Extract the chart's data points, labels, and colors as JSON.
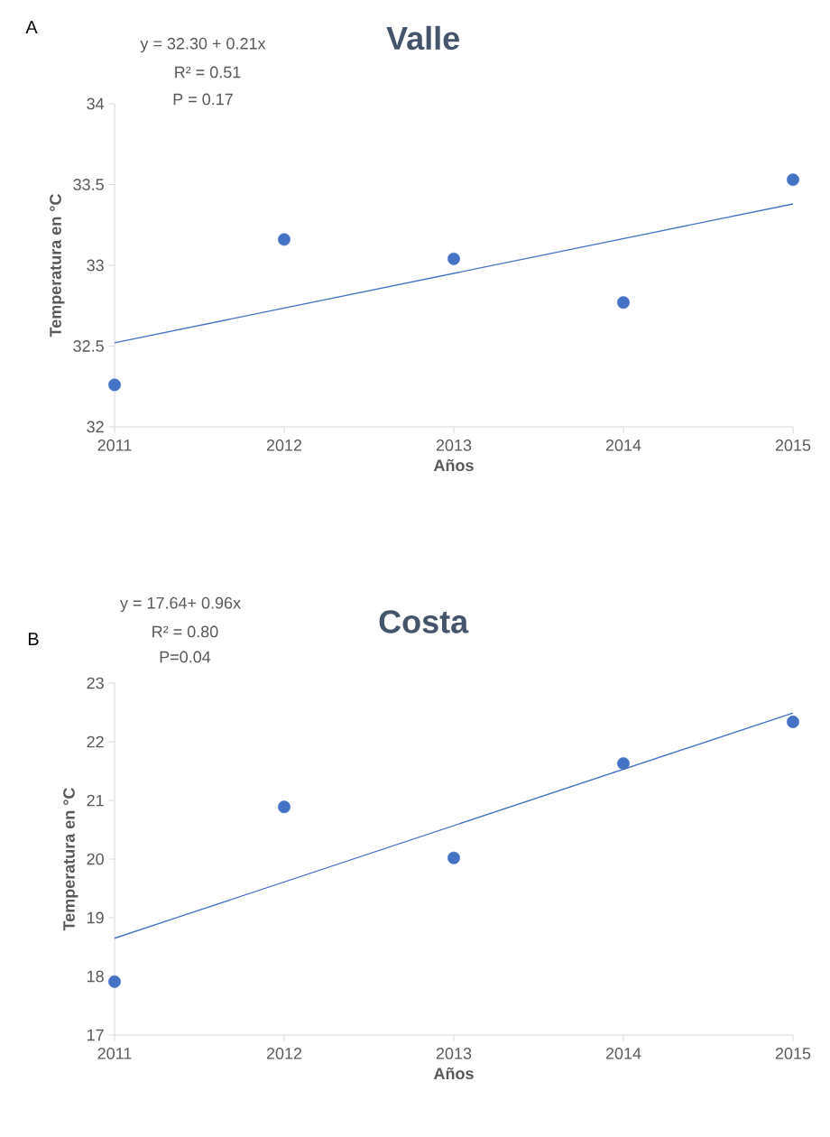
{
  "chart_data": [
    {
      "type": "scatter",
      "title": "Valle",
      "xlabel": "Años",
      "ylabel": "Temperatura en °C",
      "xlim": [
        2011,
        2015
      ],
      "xticks": [
        2011,
        2012,
        2013,
        2014,
        2015
      ],
      "ylim": [
        32,
        34
      ],
      "yticks": [
        32,
        32.5,
        33,
        33.5,
        34
      ],
      "annotations": [
        "A",
        "y =  32.30 + 0.21x",
        "R² = 0.51",
        "P = 0.17"
      ],
      "series": [
        {
          "color": "#4472c4",
          "x": [
            2011,
            2012,
            2013,
            2014,
            2015
          ],
          "values": [
            32.26,
            33.16,
            33.04,
            32.77,
            33.53
          ]
        },
        {
          "type": "line",
          "color": "#4472c4",
          "marker": "none",
          "x": [
            2011,
            2015
          ],
          "values": [
            32.52,
            33.38
          ]
        }
      ]
    },
    {
      "type": "scatter",
      "title": "Costa",
      "xlabel": "Años",
      "ylabel": "Temperatura en °C",
      "xlim": [
        2011,
        2015
      ],
      "xticks": [
        2011,
        2012,
        2013,
        2014,
        2015
      ],
      "ylim": [
        17,
        23
      ],
      "yticks": [
        17,
        18,
        19,
        20,
        21,
        22,
        23
      ],
      "annotations": [
        "B",
        "y =   17.64+ 0.96x",
        "R² = 0.80",
        "P=0.04"
      ],
      "series": [
        {
          "color": "#4472c4",
          "x": [
            2011,
            2012,
            2013,
            2014,
            2015
          ],
          "values": [
            17.91,
            20.89,
            20.02,
            21.63,
            22.34
          ]
        },
        {
          "type": "line",
          "color": "#4472c4",
          "marker": "none",
          "x": [
            2011,
            2015
          ],
          "values": [
            18.65,
            22.49
          ]
        }
      ]
    }
  ]
}
